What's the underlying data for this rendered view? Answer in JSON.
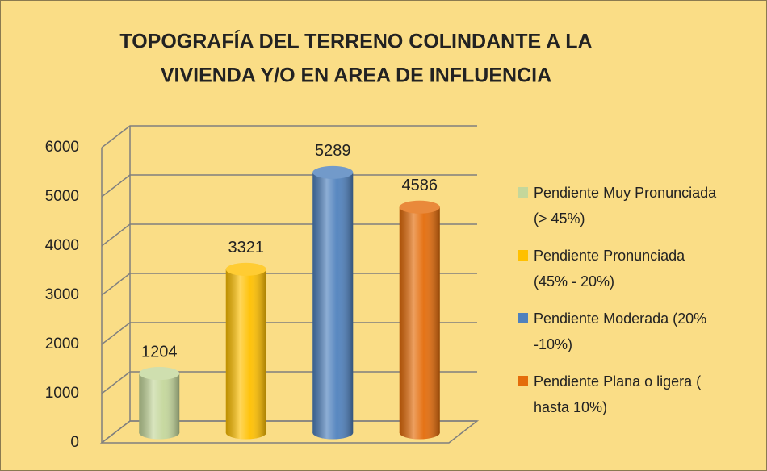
{
  "chart_data": {
    "type": "bar",
    "title": [
      "TOPOGRAFÍA  DEL TERRENO COLINDANTE A LA",
      "VIVIENDA Y/O EN AREA DE INFLUENCIA"
    ],
    "categories": [
      "Pendiente Muy Pronunciada (> 45%)",
      "Pendiente Pronunciada (45% - 20%)",
      "Pendiente Moderada (20% -10%)",
      "Pendiente Plana o ligera ( hasta 10%)"
    ],
    "values": [
      1204,
      3321,
      5289,
      4586
    ],
    "colors": [
      "#c4d79b",
      "#ffc000",
      "#4f81bd",
      "#e46c0a"
    ],
    "ylim": [
      0,
      6000
    ],
    "yticks": [
      0,
      1000,
      2000,
      3000,
      4000,
      5000,
      6000
    ],
    "grid": true,
    "legend": "right"
  }
}
